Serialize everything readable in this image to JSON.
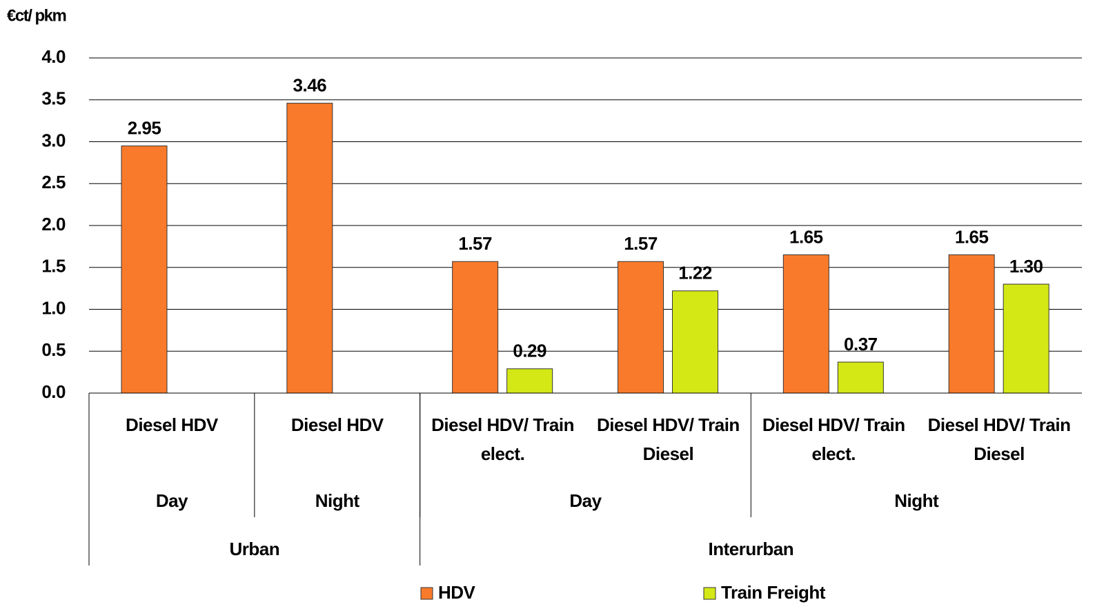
{
  "chart_data": {
    "type": "bar",
    "y_label": "€ct/ pkm",
    "categories": [
      "Diesel HDV",
      "Diesel HDV",
      "Diesel HDV/ Train\nelect.",
      "Diesel HDV/ Train\nDiesel",
      "Diesel HDV/ Train\nelect.",
      "Diesel HDV/ Train\nDiesel"
    ],
    "levels": [
      {
        "labels": [
          "Day",
          "Night",
          "Day",
          "Night"
        ],
        "spans": [
          1,
          1,
          2,
          2
        ]
      },
      {
        "labels": [
          "Urban",
          "Interurban"
        ],
        "spans": [
          2,
          4
        ]
      }
    ],
    "series": [
      {
        "name": "HDV",
        "color": "#f97a2a",
        "values": [
          2.95,
          3.46,
          1.57,
          1.57,
          1.65,
          1.65
        ]
      },
      {
        "name": "Train Freight",
        "color": "#d4e816",
        "values": [
          null,
          null,
          0.29,
          1.22,
          0.37,
          1.3
        ],
        "value_labels": [
          null,
          null,
          "0.29",
          "1.22",
          "0.37",
          "1.30"
        ]
      }
    ],
    "ylim": [
      0,
      4
    ],
    "yticks": [
      {
        "value": 0,
        "label": "0.0"
      },
      0.5,
      {
        "value": 1,
        "label": "1.0"
      },
      1.5,
      {
        "value": 2,
        "label": "2.0"
      },
      2.5,
      {
        "value": 3,
        "label": "3.0"
      },
      3.5,
      {
        "value": 4,
        "label": "4.0"
      }
    ],
    "grid": true,
    "legend": "bottom"
  }
}
